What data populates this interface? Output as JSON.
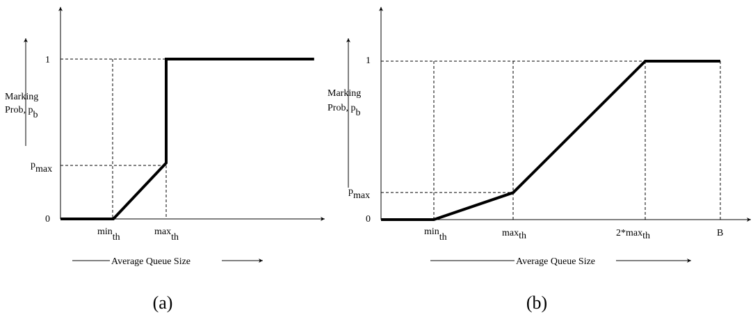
{
  "chart_data": [
    {
      "type": "line",
      "panel_label": "(a)",
      "ylabel_line1": "Marking",
      "ylabel_line2": "Prob, p",
      "ylabel_sub": "b",
      "xlabel": "Average Queue Size",
      "yticks": {
        "zero": "0",
        "one": "1",
        "pmax_main": "p",
        "pmax_sub": "max"
      },
      "xticks": [
        {
          "main": "min",
          "sub": "th"
        },
        {
          "main": "max",
          "sub": "th"
        }
      ],
      "x_domain": [
        0,
        5
      ],
      "y_domain": [
        0,
        1.1
      ],
      "p_max": 0.35,
      "min_th": 1,
      "max_th": 2,
      "series": [
        {
          "points": [
            [
              0,
              0
            ],
            [
              1,
              0
            ],
            [
              2,
              0.35
            ],
            [
              2,
              1
            ],
            [
              4.8,
              1
            ]
          ]
        }
      ]
    },
    {
      "type": "line",
      "panel_label": "(b)",
      "ylabel_line1": "Marking",
      "ylabel_line2": "Prob, p",
      "ylabel_sub": "b",
      "xlabel": "Average Queue Size",
      "yticks": {
        "zero": "0",
        "one": "1",
        "pmax_main": "p",
        "pmax_sub": "max"
      },
      "xticks": [
        {
          "main": "min",
          "sub": "th"
        },
        {
          "main": "max",
          "sub": "th"
        },
        {
          "main": "2*max",
          "sub": "th"
        },
        {
          "main": "B",
          "sub": ""
        }
      ],
      "x_domain": [
        0,
        5
      ],
      "y_domain": [
        0,
        1.1
      ],
      "p_max": 0.17,
      "min_th": 1,
      "max_th": 2,
      "two_max_th": 4,
      "B": 5,
      "series": [
        {
          "points": [
            [
              0,
              0
            ],
            [
              1,
              0
            ],
            [
              2,
              0.17
            ],
            [
              4,
              1
            ],
            [
              5,
              1
            ]
          ]
        }
      ]
    }
  ]
}
